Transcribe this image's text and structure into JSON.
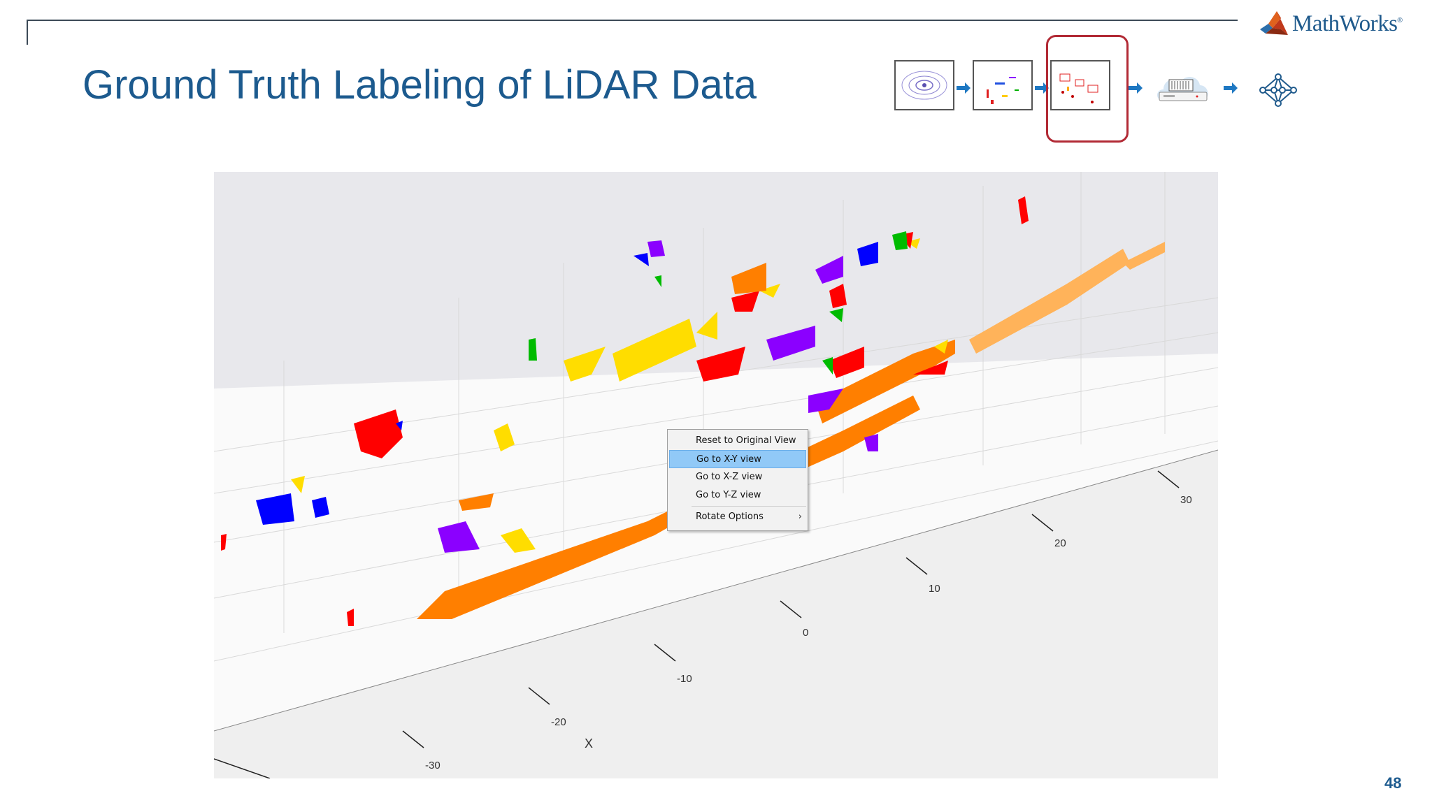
{
  "header": {
    "title": "Ground Truth Labeling of LiDAR Data",
    "logo_text": "MathWorks",
    "logo_reg": "®"
  },
  "workflow": {
    "steps": [
      "lidar-scan-thumbnail",
      "segmented-points-thumbnail",
      "labeled-boxes-thumbnail",
      "cloud-gpu-server-icon",
      "neural-network-icon"
    ],
    "active_step": 3,
    "arrow_color": "#1e78c2",
    "highlight_color": "#b22a35"
  },
  "plot": {
    "x_axis_label": "X",
    "x_tick_labels": [
      "-30",
      "-20",
      "-10",
      "0",
      "10",
      "20",
      "30"
    ],
    "point_colors": [
      "#ff0000",
      "#ff7f00",
      "#ffdd00",
      "#00bb00",
      "#0000ff",
      "#8b00ff"
    ]
  },
  "context_menu": {
    "items": [
      "Reset to Original View",
      "Go to X-Y view",
      "Go to X-Z view",
      "Go to Y-Z view",
      "Rotate Options"
    ],
    "highlighted_item": "Go to X-Y view",
    "submenu_arrow": "›"
  },
  "footer": {
    "page_number": "48"
  }
}
